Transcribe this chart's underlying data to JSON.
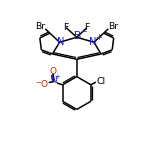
{
  "bg_color": "#ffffff",
  "line_color": "#000000",
  "N_color": "#2222cc",
  "B_color": "#2222cc",
  "O_color": "#cc2200",
  "bond_lw": 1.1,
  "font_size": 7.2,
  "small_font_size": 5.2,
  "figsize": [
    1.52,
    1.52
  ],
  "dpi": 100,
  "xlim": [
    0,
    10
  ],
  "ylim": [
    0,
    10
  ]
}
